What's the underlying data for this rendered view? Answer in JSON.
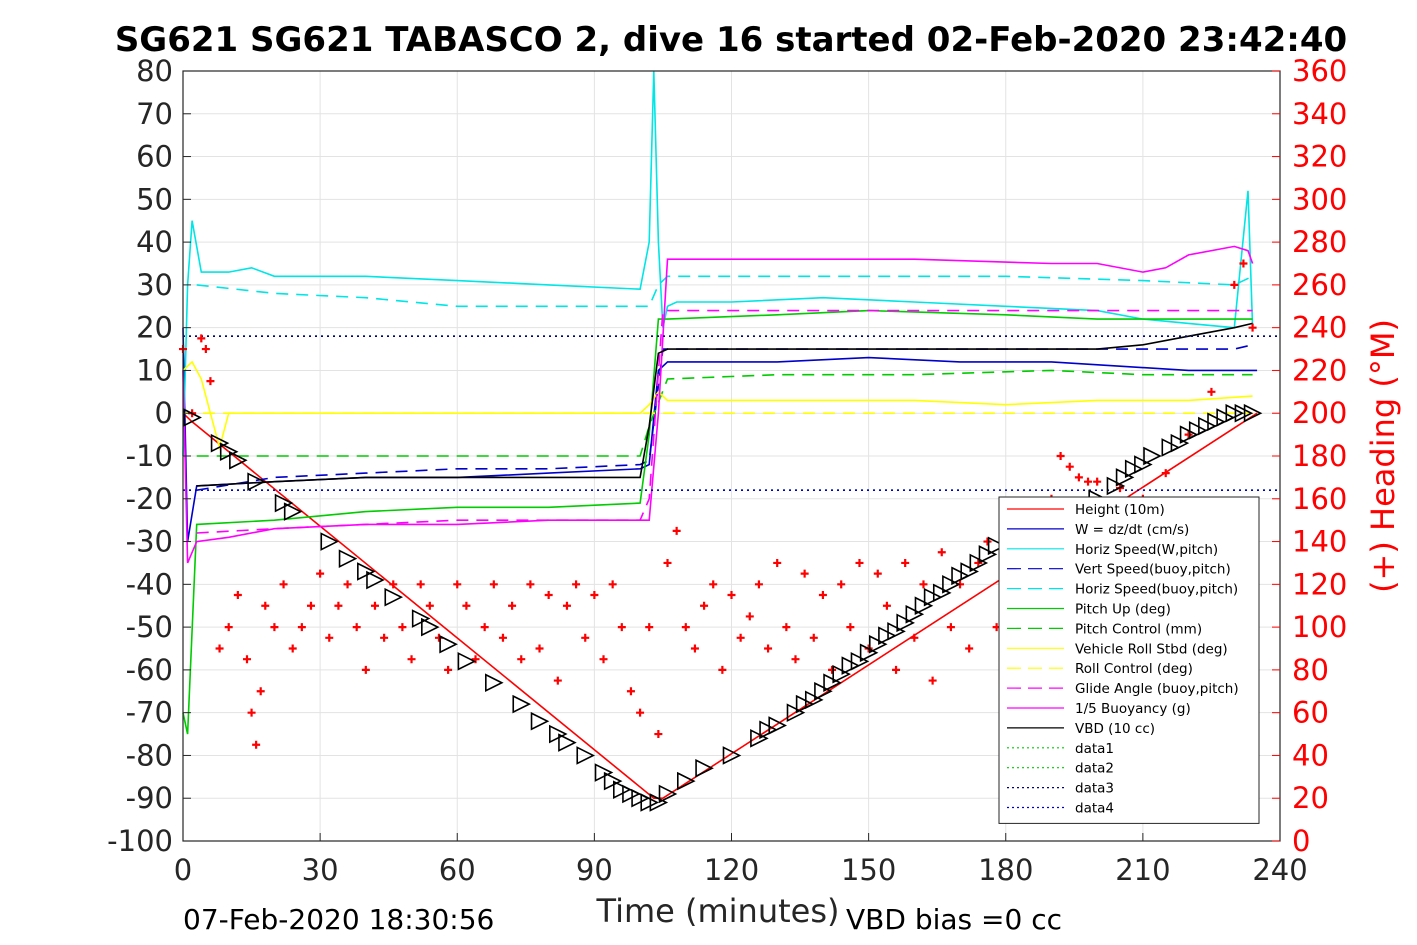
{
  "chart_data": {
    "type": "line",
    "title": "SG621 SG621 TABASCO 2, dive 16 started 02-Feb-2020 23:42:40",
    "xlabel": "Time (minutes)",
    "ylabel": "",
    "ylabel_right": "(+) Heading (°M)",
    "xlim": [
      0,
      240
    ],
    "ylim": [
      -100,
      80
    ],
    "ylim_right": [
      0,
      360
    ],
    "x_ticks": [
      "0",
      "30",
      "60",
      "90",
      "120",
      "150",
      "180",
      "210",
      "240"
    ],
    "y_ticks": [
      "-100",
      "-90",
      "-80",
      "-70",
      "-60",
      "-50",
      "-40",
      "-30",
      "-20",
      "-10",
      "0",
      "10",
      "20",
      "30",
      "40",
      "50",
      "60",
      "70",
      "80"
    ],
    "y_right_ticks": [
      "0",
      "20",
      "40",
      "60",
      "80",
      "100",
      "120",
      "140",
      "160",
      "180",
      "200",
      "220",
      "240",
      "260",
      "280",
      "300",
      "320",
      "340",
      "360"
    ],
    "grid": true,
    "legend_position": "bottom-right",
    "footer_left": "07-Feb-2020 18:30:56",
    "footer_right": "VBD bias =0 cc",
    "legend": [
      {
        "label": "Height (10m)",
        "color": "#ff0000",
        "style": "solid"
      },
      {
        "label": "W = dz/dt (cm/s)",
        "color": "#0000cc",
        "style": "solid"
      },
      {
        "label": "Horiz Speed(W,pitch)",
        "color": "#00e5e5",
        "style": "solid"
      },
      {
        "label": "Vert Speed(buoy,pitch)",
        "color": "#0000cc",
        "style": "dashed"
      },
      {
        "label": "Horiz Speed(buoy,pitch)",
        "color": "#00e5e5",
        "style": "dashed"
      },
      {
        "label": "Pitch Up (deg)",
        "color": "#00cc00",
        "style": "solid"
      },
      {
        "label": "Pitch Control (mm)",
        "color": "#00cc00",
        "style": "dashed"
      },
      {
        "label": "Vehicle Roll Stbd (deg)",
        "color": "#ffff00",
        "style": "solid"
      },
      {
        "label": "Roll Control (deg)",
        "color": "#ffff00",
        "style": "dashed"
      },
      {
        "label": "Glide Angle (buoy,pitch)",
        "color": "#ff00ff",
        "style": "dashed"
      },
      {
        "label": "1/5 Buoyancy (g)",
        "color": "#ff00ff",
        "style": "solid"
      },
      {
        "label": "VBD (10 cc)",
        "color": "#000000",
        "style": "solid"
      },
      {
        "label": "data1",
        "color": "#00cc00",
        "style": "dotted"
      },
      {
        "label": "data2",
        "color": "#00cc00",
        "style": "dotted"
      },
      {
        "label": "data3",
        "color": "#000080",
        "style": "dotted"
      },
      {
        "label": "data4",
        "color": "#0000cc",
        "style": "dotted"
      }
    ],
    "series": [
      {
        "name": "Height (10m)",
        "color": "#ff0000",
        "x": [
          0,
          2,
          103,
          105,
          235
        ],
        "y": [
          0,
          -2,
          -90,
          -90,
          0
        ]
      },
      {
        "name": "W = dz/dt (cm/s)",
        "color": "#0000cc",
        "x": [
          0,
          1,
          3,
          20,
          40,
          60,
          80,
          100,
          102,
          104,
          106,
          110,
          130,
          150,
          170,
          190,
          205,
          220,
          235
        ],
        "y": [
          20,
          -30,
          -17,
          -16,
          -15,
          -15,
          -14,
          -13,
          -12,
          10,
          12,
          12,
          12,
          13,
          12,
          12,
          11,
          10,
          10
        ]
      },
      {
        "name": "Horiz Speed(W,pitch)",
        "color": "#00e5e5",
        "x": [
          0,
          1,
          2,
          4,
          10,
          15,
          20,
          40,
          60,
          80,
          100,
          102,
          103,
          104,
          105,
          106,
          108,
          120,
          140,
          160,
          180,
          200,
          210,
          220,
          230,
          233,
          234
        ],
        "y": [
          -10,
          30,
          45,
          33,
          33,
          34,
          32,
          32,
          31,
          30,
          29,
          40,
          80,
          40,
          20,
          25,
          26,
          26,
          27,
          26,
          25,
          24,
          22,
          21,
          20,
          52,
          20
        ]
      },
      {
        "name": "Vert Speed(buoy,pitch)",
        "color": "#0000cc",
        "x": [
          3,
          20,
          40,
          60,
          80,
          100,
          102,
          105,
          130,
          160,
          190,
          210,
          230,
          234
        ],
        "y": [
          -18,
          -15,
          -14,
          -13,
          -13,
          -12,
          -11,
          15,
          15,
          15,
          15,
          15,
          15,
          16
        ]
      },
      {
        "name": "Horiz Speed(buoy,pitch)",
        "color": "#00e5e5",
        "x": [
          3,
          20,
          40,
          60,
          80,
          100,
          102,
          104,
          106,
          120,
          150,
          180,
          210,
          230,
          234
        ],
        "y": [
          30,
          28,
          27,
          25,
          25,
          25,
          25,
          30,
          32,
          32,
          32,
          32,
          31,
          30,
          32
        ]
      },
      {
        "name": "Pitch Up (deg)",
        "color": "#00cc00",
        "x": [
          0,
          1,
          3,
          20,
          40,
          60,
          80,
          100,
          102,
          104,
          106,
          130,
          150,
          180,
          200,
          210,
          234
        ],
        "y": [
          -70,
          -75,
          -26,
          -25,
          -23,
          -22,
          -22,
          -21,
          -5,
          22,
          22,
          23,
          24,
          23,
          22,
          22,
          22
        ]
      },
      {
        "name": "Pitch Control (mm)",
        "color": "#00cc00",
        "x": [
          3,
          20,
          40,
          60,
          80,
          100,
          102,
          106,
          130,
          160,
          190,
          210,
          234
        ],
        "y": [
          -10,
          -10,
          -10,
          -10,
          -10,
          -10,
          -3,
          8,
          9,
          9,
          10,
          9,
          9
        ]
      },
      {
        "name": "Vehicle Roll Stbd (deg)",
        "color": "#ffff00",
        "x": [
          0,
          2,
          4,
          6,
          8,
          10,
          20,
          30,
          40,
          50,
          60,
          70,
          80,
          90,
          100,
          102,
          104,
          106,
          120,
          140,
          160,
          180,
          200,
          220,
          234
        ],
        "y": [
          10,
          12,
          8,
          0,
          -8,
          0,
          0,
          0,
          0,
          0,
          0,
          0,
          0,
          0,
          0,
          2,
          5,
          3,
          3,
          3,
          3,
          2,
          3,
          3,
          4
        ]
      },
      {
        "name": "Roll Control (deg)",
        "color": "#ffff00",
        "x": [
          0,
          234
        ],
        "y": [
          0,
          0
        ]
      },
      {
        "name": "Glide Angle (buoy,pitch)",
        "color": "#ff00ff",
        "x": [
          3,
          20,
          40,
          60,
          80,
          100,
          102,
          105,
          130,
          160,
          190,
          210,
          234
        ],
        "y": [
          -28,
          -27,
          -26,
          -25,
          -25,
          -25,
          -20,
          24,
          24,
          24,
          24,
          24,
          24
        ]
      },
      {
        "name": "1/5 Buoyancy (g)",
        "color": "#ff00ff",
        "x": [
          0,
          1,
          3,
          10,
          20,
          40,
          60,
          80,
          100,
          102,
          104,
          106,
          130,
          160,
          190,
          200,
          210,
          215,
          220,
          230,
          233,
          234
        ],
        "y": [
          10,
          -35,
          -30,
          -29,
          -27,
          -26,
          -26,
          -25,
          -25,
          -25,
          0,
          36,
          36,
          36,
          35,
          35,
          33,
          34,
          37,
          39,
          38,
          35
        ]
      },
      {
        "name": "VBD (10 cc)",
        "color": "#000000",
        "x": [
          3,
          20,
          40,
          60,
          80,
          100,
          102,
          104,
          106,
          130,
          160,
          190,
          200,
          210,
          220,
          230,
          234
        ],
        "y": [
          -17,
          -16,
          -15,
          -15,
          -15,
          -15,
          -3,
          14,
          15,
          15,
          15,
          15,
          15,
          16,
          18,
          20,
          21
        ]
      },
      {
        "name": "data1",
        "color": "#00cc00",
        "x": [
          0,
          240
        ],
        "y": [
          18,
          18
        ]
      },
      {
        "name": "data2",
        "color": "#00cc00",
        "x": [
          0,
          240
        ],
        "y": [
          -18,
          -18
        ]
      },
      {
        "name": "data3",
        "color": "#000080",
        "x": [
          0,
          240
        ],
        "y": [
          18,
          18
        ]
      },
      {
        "name": "data4",
        "color": "#0000cc",
        "x": [
          0,
          240
        ],
        "y": [
          -18,
          -18
        ]
      }
    ],
    "heading_points": {
      "name": "Heading",
      "color": "#ff0000",
      "marker": "+",
      "x": [
        0,
        2,
        4,
        5,
        6,
        8,
        10,
        12,
        14,
        15,
        16,
        17,
        18,
        20,
        22,
        24,
        26,
        28,
        30,
        32,
        34,
        36,
        38,
        40,
        42,
        44,
        46,
        48,
        50,
        52,
        54,
        56,
        58,
        60,
        62,
        64,
        66,
        68,
        70,
        72,
        74,
        76,
        78,
        80,
        82,
        84,
        86,
        88,
        90,
        92,
        94,
        96,
        98,
        100,
        102,
        104,
        106,
        108,
        110,
        112,
        114,
        116,
        118,
        120,
        122,
        124,
        126,
        128,
        130,
        132,
        134,
        136,
        138,
        140,
        142,
        144,
        146,
        148,
        150,
        152,
        154,
        156,
        158,
        160,
        162,
        164,
        166,
        168,
        170,
        172,
        174,
        176,
        178,
        180,
        182,
        184,
        186,
        188,
        190,
        192,
        194,
        196,
        198,
        200,
        205,
        210,
        215,
        220,
        225,
        230,
        232,
        234
      ],
      "y": [
        230,
        200,
        235,
        230,
        215,
        90,
        100,
        115,
        85,
        60,
        45,
        70,
        110,
        100,
        120,
        90,
        100,
        110,
        125,
        95,
        110,
        120,
        100,
        80,
        110,
        95,
        120,
        100,
        85,
        120,
        110,
        95,
        80,
        120,
        110,
        85,
        100,
        120,
        95,
        110,
        85,
        120,
        90,
        115,
        75,
        110,
        120,
        95,
        115,
        85,
        120,
        100,
        70,
        60,
        100,
        50,
        130,
        145,
        100,
        90,
        110,
        120,
        80,
        115,
        95,
        105,
        120,
        90,
        130,
        100,
        85,
        125,
        95,
        115,
        80,
        120,
        100,
        130,
        90,
        125,
        110,
        80,
        130,
        95,
        120,
        75,
        135,
        100,
        120,
        90,
        130,
        140,
        100,
        120,
        95,
        110,
        130,
        140,
        160,
        180,
        175,
        170,
        168,
        168,
        165,
        160,
        172,
        190,
        210,
        260,
        270,
        240
      ]
    },
    "triangle_points": {
      "name": "Depth markers",
      "color": "#000000",
      "marker": "triangle",
      "x": [
        2,
        8,
        10,
        12,
        16,
        22,
        24,
        32,
        36,
        40,
        42,
        46,
        52,
        54,
        58,
        62,
        68,
        74,
        78,
        82,
        84,
        88,
        92,
        94,
        96,
        98,
        100,
        102,
        104,
        106,
        110,
        114,
        120,
        126,
        128,
        130,
        134,
        136,
        138,
        140,
        142,
        144,
        146,
        148,
        150,
        152,
        154,
        156,
        158,
        160,
        162,
        164,
        166,
        168,
        170,
        172,
        174,
        176,
        178,
        200,
        204,
        206,
        208,
        210,
        212,
        216,
        218,
        220,
        222,
        224,
        226,
        228,
        230,
        232,
        234
      ],
      "y": [
        -1,
        -7,
        -9,
        -11,
        -16,
        -21,
        -23,
        -30,
        -34,
        -37,
        -39,
        -43,
        -48,
        -50,
        -54,
        -58,
        -63,
        -68,
        -72,
        -75,
        -77,
        -80,
        -84,
        -86,
        -88,
        -89,
        -90,
        -91,
        -91,
        -89,
        -86,
        -83,
        -80,
        -76,
        -74,
        -73,
        -70,
        -68,
        -67,
        -65,
        -63,
        -61,
        -59,
        -58,
        -56,
        -54,
        -52,
        -51,
        -49,
        -47,
        -45,
        -43,
        -42,
        -40,
        -38,
        -37,
        -35,
        -33,
        -31,
        -20,
        -17,
        -15,
        -13,
        -12,
        -10,
        -8,
        -7,
        -5,
        -4,
        -3,
        -2,
        -1,
        0,
        0,
        0
      ]
    }
  }
}
